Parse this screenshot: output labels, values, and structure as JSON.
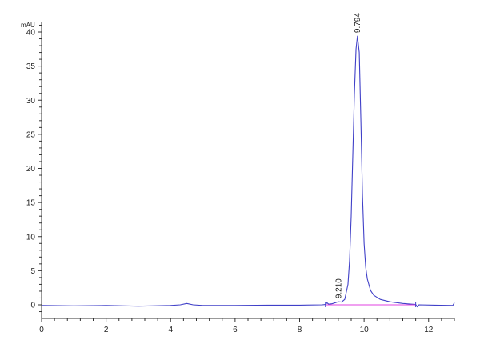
{
  "chart_data": {
    "type": "line",
    "title": "",
    "xlabel": "",
    "ylabel": "mAU",
    "xlim": [
      0,
      12.8
    ],
    "ylim": [
      -2,
      41
    ],
    "x_ticks": [
      0,
      2,
      4,
      6,
      8,
      10,
      12
    ],
    "y_ticks": [
      0,
      5,
      10,
      15,
      20,
      25,
      30,
      35,
      40
    ],
    "grid": false,
    "legend": "none",
    "series": [
      {
        "color": "#4040c8",
        "x": [
          0,
          1,
          2,
          3,
          4,
          4.3,
          4.5,
          4.7,
          5,
          6,
          7,
          8,
          8.7,
          8.8,
          8.85,
          8.9,
          9.0,
          9.1,
          9.2,
          9.3,
          9.4,
          9.5,
          9.55,
          9.6,
          9.65,
          9.7,
          9.75,
          9.794,
          9.85,
          9.9,
          9.95,
          10.0,
          10.05,
          10.1,
          10.2,
          10.3,
          10.5,
          10.8,
          11.2,
          11.6,
          11.65,
          11.7,
          12.2,
          12.75,
          12.8
        ],
        "y": [
          -0.1,
          -0.15,
          -0.1,
          -0.2,
          -0.1,
          0.0,
          0.2,
          0.0,
          -0.1,
          -0.1,
          -0.05,
          -0.05,
          0.0,
          0.05,
          0.3,
          0.1,
          0.15,
          0.3,
          0.45,
          0.4,
          0.8,
          3.0,
          6.5,
          13.0,
          22.0,
          31.0,
          37.5,
          39.4,
          37.0,
          27.0,
          16.0,
          9.0,
          5.5,
          3.8,
          2.1,
          1.4,
          0.8,
          0.45,
          0.2,
          0.05,
          -0.3,
          0.0,
          -0.05,
          -0.1,
          0.3
        ]
      },
      {
        "color": "#e040e0",
        "x": [
          8.8,
          11.6
        ],
        "y": [
          0.0,
          0.0
        ]
      }
    ],
    "annotations": [
      {
        "text": "9.210",
        "x": 9.21,
        "y": 0.45
      },
      {
        "text": "9.794",
        "x": 9.794,
        "y": 39.4
      }
    ]
  }
}
